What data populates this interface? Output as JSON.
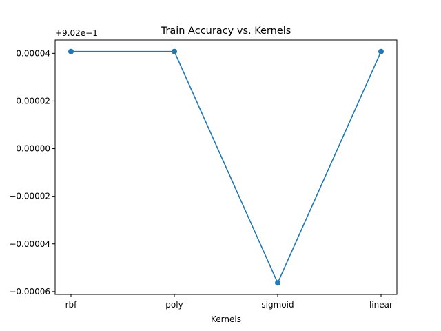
{
  "chart_data": {
    "type": "line",
    "title": "Train Accuracy vs. Kernels",
    "xlabel": "Kernels",
    "ylabel": "",
    "offset_label": "+9.02e−1",
    "categories": [
      "rbf",
      "poly",
      "sigmoid",
      "linear"
    ],
    "series": [
      {
        "values": [
          4.077e-05,
          4.077e-05,
          -5.637e-05,
          4.077e-05
        ],
        "color": "#1f77b4"
      }
    ],
    "yticks": [
      {
        "value": -6e-05,
        "label": "−0.00006"
      },
      {
        "value": -4e-05,
        "label": "−0.00004"
      },
      {
        "value": -2e-05,
        "label": "−0.00002"
      },
      {
        "value": 0.0,
        "label": "0.00000"
      },
      {
        "value": 2e-05,
        "label": "0.00002"
      },
      {
        "value": 4e-05,
        "label": "0.00004"
      }
    ],
    "ylim": [
      -6.12e-05,
      4.56e-05
    ],
    "grid": false
  }
}
